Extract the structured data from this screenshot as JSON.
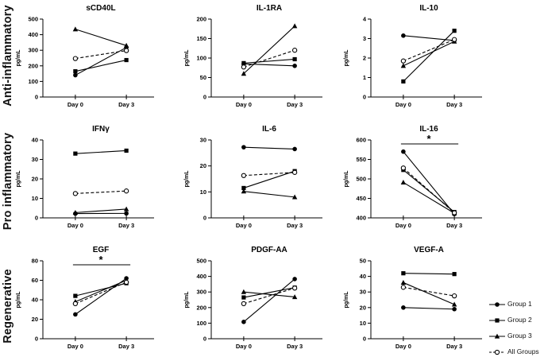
{
  "figure": {
    "row_labels": [
      "Anti-inflammatory",
      "Pro inflammatory",
      "Regenerative"
    ],
    "x_categories": [
      "Day 0",
      "Day 3"
    ],
    "ylabel": "pg/mL",
    "line_color": "#000000",
    "background_color": "#ffffff"
  },
  "legend": {
    "position": "bottom-right",
    "items": [
      {
        "label": "Group 1",
        "marker": "circle-filled",
        "line": "solid"
      },
      {
        "label": "Group 2",
        "marker": "square-filled",
        "line": "solid"
      },
      {
        "label": "Group 3",
        "marker": "triangle-filled",
        "line": "solid"
      },
      {
        "label": "All Groups",
        "marker": "circle-open",
        "line": "dashed"
      }
    ]
  },
  "chart_data": [
    {
      "type": "line",
      "title": "sCD40L",
      "row": "Anti-inflammatory",
      "categories": [
        "Day 0",
        "Day 3"
      ],
      "ylabel": "pg/mL",
      "ylim": [
        0,
        500
      ],
      "yticks": [
        0,
        100,
        200,
        300,
        400,
        500
      ],
      "significance": null,
      "series": [
        {
          "name": "Group 1",
          "values": [
            140,
            318
          ]
        },
        {
          "name": "Group 2",
          "values": [
            165,
            237
          ]
        },
        {
          "name": "Group 3",
          "values": [
            435,
            330
          ]
        },
        {
          "name": "All Groups",
          "values": [
            247,
            298
          ]
        }
      ]
    },
    {
      "type": "line",
      "title": "IL-1RA",
      "row": "Anti-inflammatory",
      "categories": [
        "Day 0",
        "Day 3"
      ],
      "ylabel": "pg/mL",
      "ylim": [
        0,
        200
      ],
      "yticks": [
        0,
        50,
        100,
        150,
        200
      ],
      "significance": null,
      "series": [
        {
          "name": "Group 1",
          "values": [
            85,
            80
          ]
        },
        {
          "name": "Group 2",
          "values": [
            87,
            97
          ]
        },
        {
          "name": "Group 3",
          "values": [
            60,
            182
          ]
        },
        {
          "name": "All Groups",
          "values": [
            77,
            120
          ]
        }
      ]
    },
    {
      "type": "line",
      "title": "IL-10",
      "row": "Anti-inflammatory",
      "categories": [
        "Day 0",
        "Day 3"
      ],
      "ylabel": "pg/mL",
      "ylim": [
        0,
        4
      ],
      "yticks": [
        0,
        1,
        2,
        3,
        4
      ],
      "significance": null,
      "series": [
        {
          "name": "Group 1",
          "values": [
            3.15,
            2.9
          ]
        },
        {
          "name": "Group 2",
          "values": [
            0.8,
            3.4
          ]
        },
        {
          "name": "Group 3",
          "values": [
            1.6,
            2.85
          ]
        },
        {
          "name": "All Groups",
          "values": [
            1.85,
            2.95
          ]
        }
      ]
    },
    {
      "type": "line",
      "title": "IFNγ",
      "row": "Pro inflammatory",
      "categories": [
        "Day 0",
        "Day 3"
      ],
      "ylabel": "pg/mL",
      "ylim": [
        0,
        40
      ],
      "yticks": [
        0,
        10,
        20,
        30,
        40
      ],
      "significance": null,
      "series": [
        {
          "name": "Group 1",
          "values": [
            2.2,
            2.3
          ]
        },
        {
          "name": "Group 2",
          "values": [
            33,
            34.5
          ]
        },
        {
          "name": "Group 3",
          "values": [
            2.7,
            4.5
          ]
        },
        {
          "name": "All Groups",
          "values": [
            12.5,
            13.8
          ]
        }
      ]
    },
    {
      "type": "line",
      "title": "IL-6",
      "row": "Pro inflammatory",
      "categories": [
        "Day 0",
        "Day 3"
      ],
      "ylabel": "pg/mL",
      "ylim": [
        0,
        30
      ],
      "yticks": [
        0,
        10,
        20,
        30
      ],
      "significance": null,
      "series": [
        {
          "name": "Group 1",
          "values": [
            27.2,
            26.5
          ]
        },
        {
          "name": "Group 2",
          "values": [
            11.5,
            18
          ]
        },
        {
          "name": "Group 3",
          "values": [
            10.2,
            8
          ]
        },
        {
          "name": "All Groups",
          "values": [
            16.3,
            17.5
          ]
        }
      ]
    },
    {
      "type": "line",
      "title": "IL-16",
      "row": "Pro inflammatory",
      "categories": [
        "Day 0",
        "Day 3"
      ],
      "ylabel": "pg/mL",
      "ylim": [
        400,
        600
      ],
      "yticks": [
        400,
        450,
        500,
        550,
        600
      ],
      "significance": "*",
      "series": [
        {
          "name": "Group 1",
          "values": [
            570,
            410
          ]
        },
        {
          "name": "Group 2",
          "values": [
            523,
            415
          ]
        },
        {
          "name": "Group 3",
          "values": [
            491,
            412
          ]
        },
        {
          "name": "All Groups",
          "values": [
            528,
            413
          ]
        }
      ]
    },
    {
      "type": "line",
      "title": "EGF",
      "row": "Regenerative",
      "categories": [
        "Day 0",
        "Day 3"
      ],
      "ylabel": "pg/mL",
      "ylim": [
        0,
        80
      ],
      "yticks": [
        0,
        20,
        40,
        60,
        80
      ],
      "significance": "*",
      "series": [
        {
          "name": "Group 1",
          "values": [
            25,
            62
          ]
        },
        {
          "name": "Group 2",
          "values": [
            44,
            57
          ]
        },
        {
          "name": "Group 3",
          "values": [
            38,
            60
          ]
        },
        {
          "name": "All Groups",
          "values": [
            36,
            58
          ]
        }
      ]
    },
    {
      "type": "line",
      "title": "PDGF-AA",
      "row": "Regenerative",
      "categories": [
        "Day 0",
        "Day 3"
      ],
      "ylabel": "pg/mL",
      "ylim": [
        0,
        500
      ],
      "yticks": [
        0,
        100,
        200,
        300,
        400,
        500
      ],
      "significance": null,
      "series": [
        {
          "name": "Group 1",
          "values": [
            108,
            383
          ]
        },
        {
          "name": "Group 2",
          "values": [
            265,
            328
          ]
        },
        {
          "name": "Group 3",
          "values": [
            300,
            268
          ]
        },
        {
          "name": "All Groups",
          "values": [
            225,
            325
          ]
        }
      ]
    },
    {
      "type": "line",
      "title": "VEGF-A",
      "row": "Regenerative",
      "categories": [
        "Day 0",
        "Day 3"
      ],
      "ylabel": "pg/mL",
      "ylim": [
        0,
        50
      ],
      "yticks": [
        0,
        10,
        20,
        30,
        40,
        50
      ],
      "significance": null,
      "series": [
        {
          "name": "Group 1",
          "values": [
            20,
            19
          ]
        },
        {
          "name": "Group 2",
          "values": [
            42,
            41.5
          ]
        },
        {
          "name": "Group 3",
          "values": [
            36,
            22
          ]
        },
        {
          "name": "All Groups",
          "values": [
            33,
            27.5
          ]
        }
      ]
    }
  ]
}
